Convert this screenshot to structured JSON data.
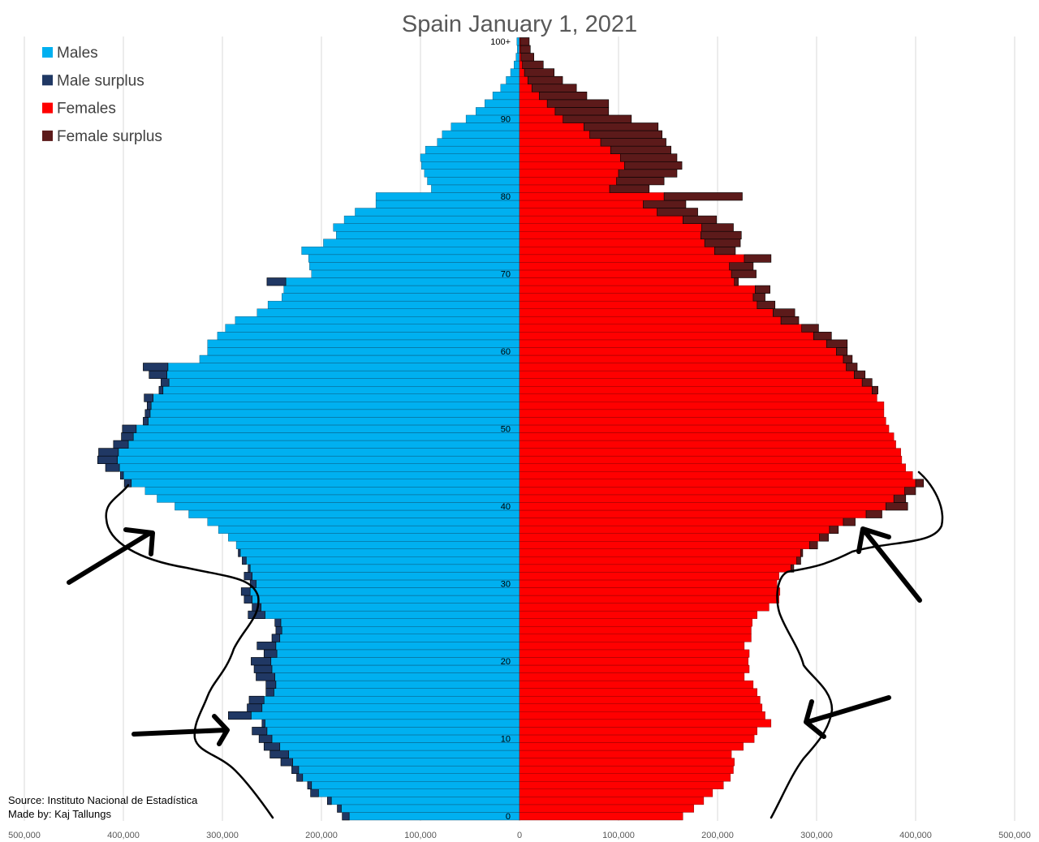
{
  "chart_data": {
    "type": "bar",
    "orientation": "horizontal",
    "title": "Spain January 1, 2021",
    "legend": {
      "placement": "top-left",
      "entries": [
        {
          "key": "males",
          "label": "Males",
          "color": "#00b0f0"
        },
        {
          "key": "male_surplus",
          "label": "Male surplus",
          "color": "#203864"
        },
        {
          "key": "females",
          "label": "Females",
          "color": "#ff0000"
        },
        {
          "key": "female_surplus",
          "label": "Female surplus",
          "color": "#5c1a1a"
        }
      ]
    },
    "xlim": [
      -500000,
      500000
    ],
    "x_ticks": [
      {
        "value": -500000,
        "label": "500,000"
      },
      {
        "value": -400000,
        "label": "400,000"
      },
      {
        "value": -300000,
        "label": "300,000"
      },
      {
        "value": -200000,
        "label": "200,000"
      },
      {
        "value": -100000,
        "label": "100,000"
      },
      {
        "value": 0,
        "label": "0"
      },
      {
        "value": 100000,
        "label": "100,000"
      },
      {
        "value": 200000,
        "label": "200,000"
      },
      {
        "value": 300000,
        "label": "300,000"
      },
      {
        "value": 400000,
        "label": "400,000"
      },
      {
        "value": 500000,
        "label": "500,000"
      }
    ],
    "age_labels": [
      {
        "age": 0,
        "label": "0"
      },
      {
        "age": 10,
        "label": "10"
      },
      {
        "age": 20,
        "label": "20"
      },
      {
        "age": 30,
        "label": "30"
      },
      {
        "age": 40,
        "label": "40"
      },
      {
        "age": 50,
        "label": "50"
      },
      {
        "age": 60,
        "label": "60"
      },
      {
        "age": 70,
        "label": "70"
      },
      {
        "age": 80,
        "label": "80"
      },
      {
        "age": 90,
        "label": "90"
      },
      {
        "age": 100,
        "label": "100+"
      }
    ],
    "grid": true,
    "ages": [
      0,
      1,
      2,
      3,
      4,
      5,
      6,
      7,
      8,
      9,
      10,
      11,
      12,
      13,
      14,
      15,
      16,
      17,
      18,
      19,
      20,
      21,
      22,
      23,
      24,
      25,
      26,
      27,
      28,
      29,
      30,
      31,
      32,
      33,
      34,
      35,
      36,
      37,
      38,
      39,
      40,
      41,
      42,
      43,
      44,
      45,
      46,
      47,
      48,
      49,
      50,
      51,
      52,
      53,
      54,
      55,
      56,
      57,
      58,
      59,
      60,
      61,
      62,
      63,
      64,
      65,
      66,
      67,
      68,
      69,
      70,
      71,
      72,
      73,
      74,
      75,
      76,
      77,
      78,
      79,
      80,
      81,
      82,
      83,
      84,
      85,
      86,
      87,
      88,
      89,
      90,
      91,
      92,
      93,
      94,
      95,
      96,
      97,
      98,
      99,
      100
    ],
    "males": [
      172000,
      180000,
      190000,
      203000,
      210000,
      219000,
      223000,
      229000,
      233000,
      242000,
      250000,
      255000,
      257000,
      271000,
      260000,
      258000,
      248000,
      246000,
      247000,
      250000,
      251000,
      245000,
      246000,
      242000,
      240000,
      241000,
      257000,
      261000,
      270000,
      272000,
      266000,
      270000,
      272000,
      276000,
      282000,
      286000,
      294000,
      304000,
      315000,
      334000,
      348000,
      366000,
      378000,
      392000,
      400000,
      404000,
      406000,
      405000,
      395000,
      390000,
      387000,
      375000,
      373000,
      372000,
      370000,
      360000,
      354000,
      356000,
      355000,
      323000,
      315000,
      315000,
      305000,
      297000,
      287000,
      265000,
      254000,
      240000,
      238000,
      236000,
      210000,
      212000,
      213000,
      220000,
      198000,
      185000,
      188000,
      177000,
      166000,
      145000,
      145000,
      89000,
      93000,
      96000,
      99000,
      100000,
      95000,
      83000,
      78000,
      69000,
      54000,
      44000,
      35000,
      27000,
      19000,
      13500,
      9000,
      5500,
      3500,
      2200,
      2600
    ],
    "females": [
      165000,
      176000,
      186000,
      195000,
      206000,
      213000,
      216000,
      217000,
      214000,
      226000,
      237000,
      240000,
      254000,
      248000,
      245000,
      243000,
      240000,
      236000,
      227000,
      232000,
      231000,
      232000,
      227000,
      234000,
      234000,
      235000,
      240000,
      252000,
      262000,
      263000,
      260000,
      262000,
      274000,
      280000,
      284000,
      293000,
      303000,
      313000,
      327000,
      350000,
      370000,
      378000,
      389000,
      400000,
      397000,
      390000,
      386000,
      385000,
      380000,
      378000,
      373000,
      370000,
      368000,
      368000,
      361000,
      356000,
      346000,
      338000,
      330000,
      327000,
      320000,
      310000,
      297000,
      285000,
      264000,
      256000,
      240000,
      236000,
      238000,
      217000,
      214000,
      212000,
      227000,
      197000,
      187000,
      183000,
      184000,
      165000,
      139000,
      125000,
      146000,
      91000,
      98000,
      100000,
      106000,
      102000,
      92000,
      82000,
      71000,
      65000,
      44000,
      36000,
      28000,
      20000,
      12500,
      8500,
      5000,
      3000,
      1500,
      900,
      800
    ],
    "male_surplus": [
      7000,
      4000,
      4000,
      8000,
      4000,
      6000,
      7000,
      12000,
      19000,
      16000,
      13000,
      15000,
      3000,
      23000,
      15000,
      15000,
      8000,
      10000,
      19000,
      18000,
      20000,
      13000,
      19000,
      8000,
      6000,
      6000,
      17000,
      9000,
      8000,
      9000,
      6000,
      8000,
      2000,
      4000,
      2000,
      0,
      0,
      0,
      0,
      0,
      0,
      0,
      0,
      7000,
      3000,
      14000,
      20000,
      20000,
      15000,
      12000,
      14000,
      5000,
      5000,
      4000,
      9000,
      4000,
      8000,
      18000,
      25000,
      0,
      0,
      0,
      0,
      0,
      0,
      0,
      0,
      0,
      0,
      19000,
      0,
      0,
      0,
      0,
      0,
      0,
      0,
      0,
      0,
      0,
      0,
      0,
      0,
      0,
      0,
      0,
      0,
      0,
      0,
      0,
      0,
      0,
      0,
      0,
      0,
      0,
      0,
      0,
      0,
      0,
      0
    ],
    "female_surplus": [
      0,
      0,
      0,
      0,
      0,
      0,
      0,
      0,
      0,
      0,
      0,
      0,
      0,
      0,
      0,
      0,
      0,
      0,
      0,
      0,
      0,
      0,
      0,
      0,
      0,
      0,
      0,
      0,
      0,
      0,
      0,
      0,
      3000,
      4000,
      2000,
      8000,
      9000,
      9000,
      12000,
      16000,
      22000,
      12000,
      11000,
      8000,
      0,
      0,
      0,
      0,
      0,
      0,
      0,
      0,
      0,
      0,
      0,
      6000,
      10000,
      11000,
      11000,
      9000,
      11000,
      21000,
      18000,
      17000,
      18000,
      22000,
      18000,
      12000,
      15000,
      4000,
      25000,
      24000,
      27000,
      21000,
      36000,
      41000,
      32000,
      34000,
      41000,
      43000,
      79000,
      40000,
      48000,
      59000,
      58000,
      57000,
      61000,
      66000,
      73000,
      75000,
      69000,
      54000,
      62000,
      48000,
      45000,
      35000,
      30000,
      21000,
      13000,
      10000,
      9000
    ]
  },
  "source": {
    "line1": "Source: Instituto Nacional de Estadística",
    "line2": "Made by: Kaj Tallungs"
  }
}
